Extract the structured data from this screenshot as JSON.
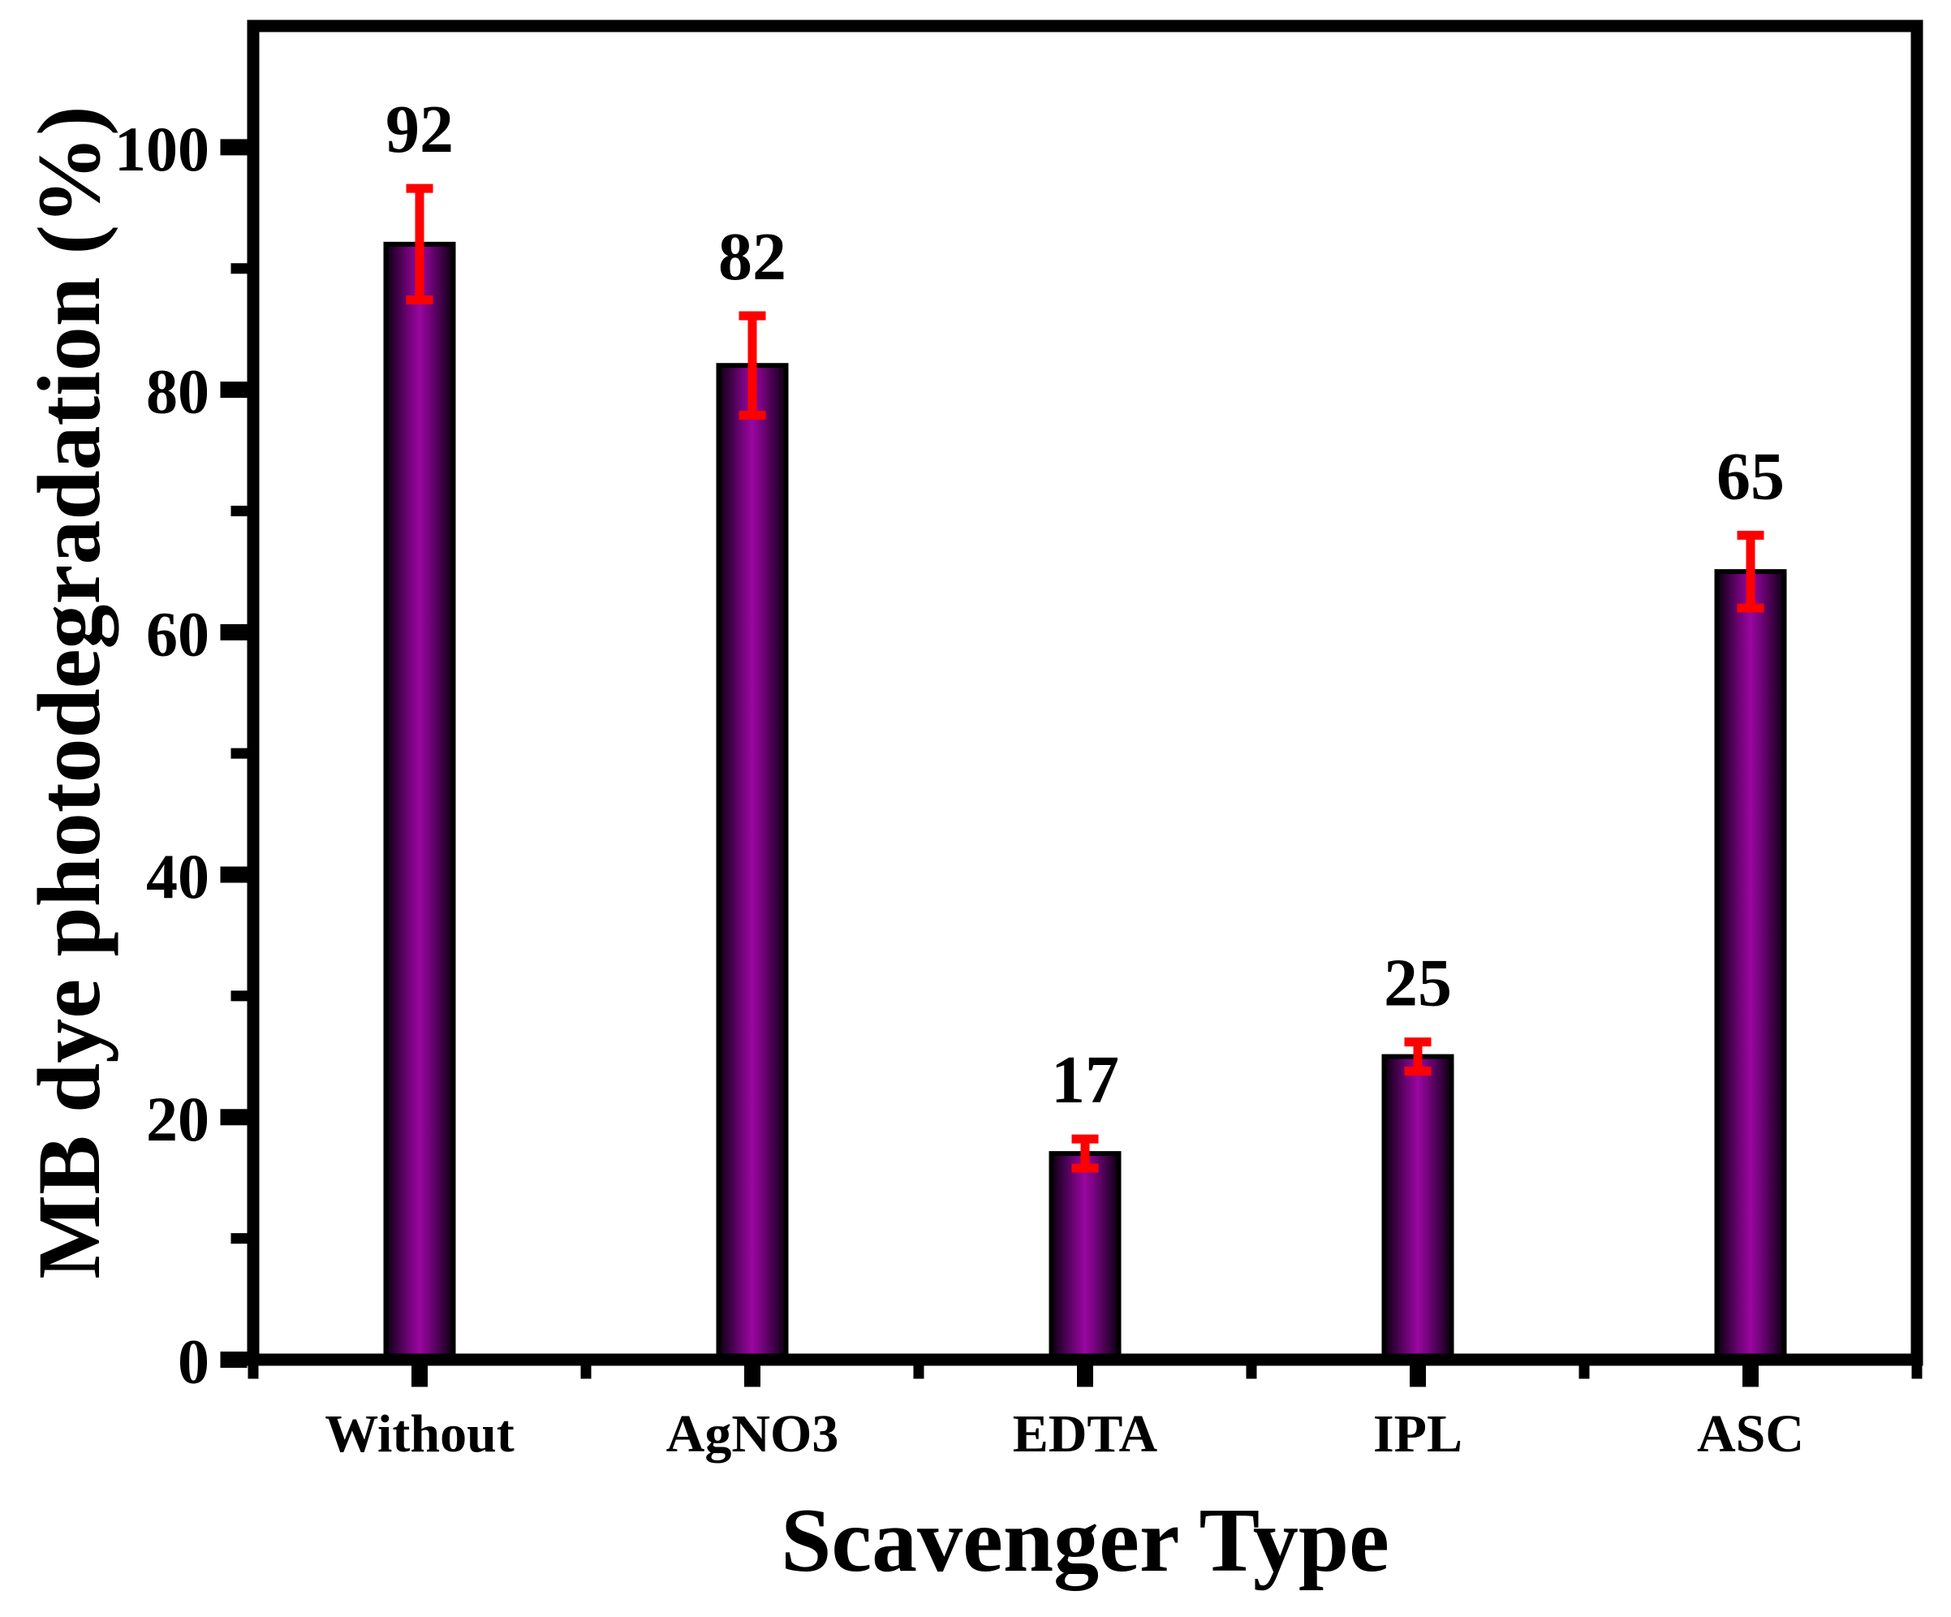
{
  "chart_data": {
    "type": "bar",
    "title": "",
    "xlabel": "Scavenger Type",
    "ylabel": "MB dye photodegradation (%)",
    "categories": [
      "Without",
      "AgNO3",
      "EDTA",
      "IPL",
      "ASC"
    ],
    "values": [
      92,
      82,
      17,
      25,
      65
    ],
    "value_labels": [
      "92",
      "82",
      "17",
      "25",
      "65"
    ],
    "errors": [
      4.6,
      4.1,
      1.2,
      1.2,
      3.0
    ],
    "ylim": [
      0,
      110
    ],
    "yticks_major": [
      0,
      20,
      40,
      60,
      80,
      100
    ],
    "ytick_labels": [
      "0",
      "20",
      "40",
      "60",
      "80",
      "100"
    ],
    "yticks_minor": [
      10,
      30,
      50,
      70,
      90
    ],
    "grid": false,
    "legend": null,
    "colors": {
      "bar_center": "#99079f",
      "bar_mid": "#73037c",
      "bar_dark": "#2e0035",
      "bar_edge": "#0a000e",
      "bar_border": "#000000",
      "error_bar": "#ff0000",
      "axis": "#000000",
      "text": "#000000",
      "background": "#ffffff"
    }
  }
}
